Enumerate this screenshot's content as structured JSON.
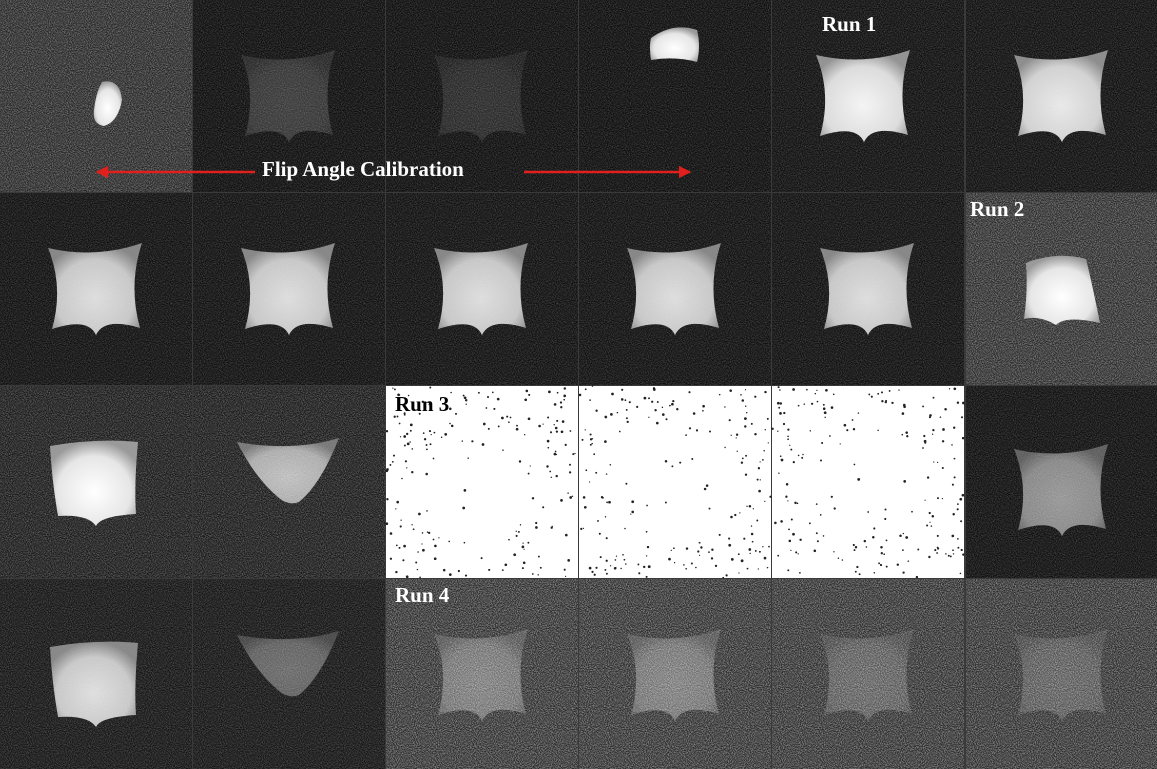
{
  "figure": {
    "calibration_label": "Flip Angle Calibration",
    "run_labels": [
      "Run 1",
      "Run 2",
      "Run 3",
      "Run 4"
    ]
  }
}
